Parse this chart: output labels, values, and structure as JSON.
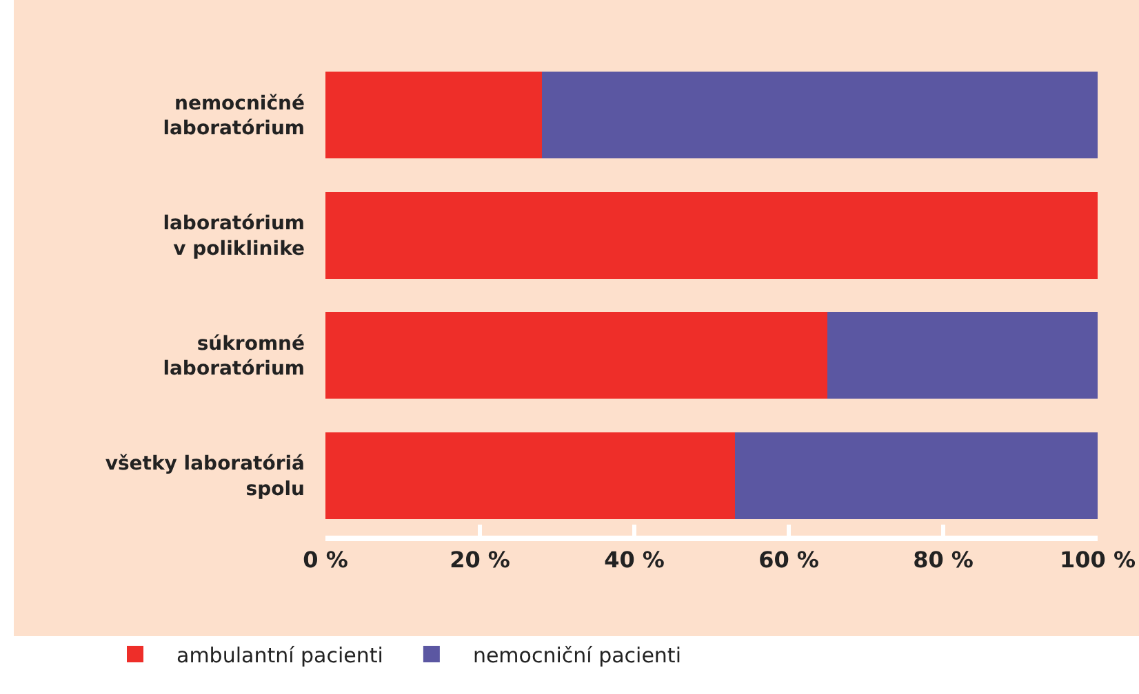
{
  "chart_data": {
    "type": "bar",
    "orientation": "horizontal",
    "stacked": true,
    "categories": [
      "nemocničné\nlaboratórium",
      "laboratórium\nv poliklinike",
      "súkromné\nlaboratórium",
      "všetky laboratóriá\nspolu"
    ],
    "series": [
      {
        "name": "ambulantní pacienti",
        "color": "#ee2e29",
        "values": [
          28,
          100,
          65,
          53
        ]
      },
      {
        "name": "nemocniční pacienti",
        "color": "#5b57a2",
        "values": [
          72,
          0,
          35,
          47
        ]
      }
    ],
    "xlim": [
      0,
      100
    ],
    "xticks": [
      {
        "value": 0,
        "label": "0 %"
      },
      {
        "value": 20,
        "label": "20 %"
      },
      {
        "value": 40,
        "label": "40 %"
      },
      {
        "value": 60,
        "label": "60 %"
      },
      {
        "value": 80,
        "label": "80 %"
      },
      {
        "value": 100,
        "label": "100 %"
      }
    ],
    "grid": false,
    "legend": "bottom left"
  }
}
